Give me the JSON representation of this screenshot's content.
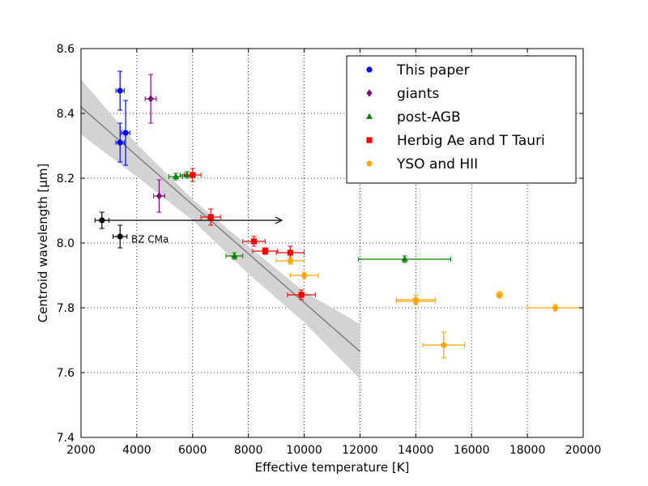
{
  "chart_data": {
    "type": "scatter",
    "xlabel": "Effective temperature [K]",
    "ylabel": "Centroid wavelength [μm]",
    "xlim": [
      2000,
      20000
    ],
    "ylim": [
      7.4,
      8.6
    ],
    "xticks": [
      2000,
      4000,
      6000,
      8000,
      10000,
      12000,
      14000,
      16000,
      18000,
      20000
    ],
    "xtick_labels": [
      "2000",
      "4000",
      "6000",
      "8000",
      "10000",
      "12000",
      "14000",
      "16000",
      "18000",
      "20000"
    ],
    "yticks": [
      7.4,
      7.6,
      7.8,
      8.0,
      8.2,
      8.4,
      8.6
    ],
    "ytick_labels": [
      "7.4",
      "7.6",
      "7.8",
      "8.0",
      "8.2",
      "8.4",
      "8.6"
    ],
    "grid": true,
    "legend_position": "top-right",
    "series": [
      {
        "name": "This paper",
        "color": "#0000ff",
        "marker": "circle",
        "points": [
          {
            "x": 3400,
            "y": 8.47,
            "xerr": 150,
            "yerr": 0.06
          },
          {
            "x": 3400,
            "y": 8.31,
            "xerr": 150,
            "yerr": 0.06
          },
          {
            "x": 3600,
            "y": 8.34,
            "xerr": 150,
            "yerr": 0.1
          }
        ]
      },
      {
        "name": "giants",
        "color": "#800080",
        "marker": "diamond",
        "points": [
          {
            "x": 4500,
            "y": 8.445,
            "xerr": 200,
            "yerr": 0.075
          },
          {
            "x": 4800,
            "y": 8.145,
            "xerr": 200,
            "yerr": 0.05
          }
        ]
      },
      {
        "name": "post-AGB",
        "color": "#008000",
        "marker": "triangle",
        "points": [
          {
            "x": 5400,
            "y": 8.205,
            "xerr": 250,
            "yerr": 0.01
          },
          {
            "x": 5800,
            "y": 8.21,
            "xerr": 250,
            "yerr": 0.01
          },
          {
            "x": 7500,
            "y": 7.96,
            "xerr": 300,
            "yerr": 0.01
          },
          {
            "x": 13600,
            "y": 7.95,
            "xerr": 1650,
            "yerr": 0.01
          }
        ]
      },
      {
        "name": "Herbig Ae and T Tauri",
        "color": "#ff0000",
        "marker": "square",
        "points": [
          {
            "x": 6000,
            "y": 8.21,
            "xerr": 300,
            "yerr": 0.02
          },
          {
            "x": 6650,
            "y": 8.08,
            "xerr": 350,
            "yerr": 0.025
          },
          {
            "x": 8200,
            "y": 8.005,
            "xerr": 400,
            "yerr": 0.015
          },
          {
            "x": 8600,
            "y": 7.975,
            "xerr": 450,
            "yerr": 0.01
          },
          {
            "x": 9500,
            "y": 7.97,
            "xerr": 500,
            "yerr": 0.02
          },
          {
            "x": 9900,
            "y": 7.84,
            "xerr": 500,
            "yerr": 0.015
          }
        ]
      },
      {
        "name": "YSO and HII",
        "color": "#ffa500",
        "marker": "pentagon",
        "points": [
          {
            "x": 9500,
            "y": 7.945,
            "xerr": 500,
            "yerr": 0.01
          },
          {
            "x": 10000,
            "y": 7.9,
            "xerr": 500,
            "yerr": 0.01
          },
          {
            "x": 14000,
            "y": 7.825,
            "xerr": 700,
            "yerr": 0.015
          },
          {
            "x": 14000,
            "y": 7.82,
            "xerr": 700,
            "yerr": 0.01
          },
          {
            "x": 15000,
            "y": 7.685,
            "xerr": 750,
            "yerr": 0.04
          },
          {
            "x": 17000,
            "y": 7.84,
            "xerr": 100,
            "yerr": 0.01
          },
          {
            "x": 19000,
            "y": 7.8,
            "xerr": 1000,
            "yerr": 0.01
          }
        ]
      },
      {
        "name": "",
        "color": "#000000",
        "marker": "circle",
        "in_legend": false,
        "points": [
          {
            "x": 2750,
            "y": 8.07,
            "xerr": 250,
            "yerr": 0.025
          },
          {
            "x": 3400,
            "y": 8.02,
            "xerr": 250,
            "yerr": 0.035
          }
        ]
      }
    ],
    "fit": {
      "line": [
        {
          "x": 2000,
          "y": 8.42
        },
        {
          "x": 12000,
          "y": 7.665
        }
      ],
      "band_upper": [
        {
          "x": 2000,
          "y": 8.505
        },
        {
          "x": 4000,
          "y": 8.305
        },
        {
          "x": 6000,
          "y": 8.135
        },
        {
          "x": 8000,
          "y": 7.99
        },
        {
          "x": 10000,
          "y": 7.85
        },
        {
          "x": 12000,
          "y": 7.75
        }
      ],
      "band_lower": [
        {
          "x": 2000,
          "y": 8.335
        },
        {
          "x": 4000,
          "y": 8.205
        },
        {
          "x": 6000,
          "y": 8.07
        },
        {
          "x": 8000,
          "y": 7.905
        },
        {
          "x": 10000,
          "y": 7.755
        },
        {
          "x": 12000,
          "y": 7.58
        }
      ],
      "line_color": "#808080",
      "band_color": "#d3d3d3"
    },
    "arrow": {
      "x_start": 2750,
      "x_end": 9200,
      "y": 8.07
    },
    "annotations": [
      {
        "text": "BZ CMa",
        "x": 3800,
        "y": 8.01
      }
    ]
  }
}
